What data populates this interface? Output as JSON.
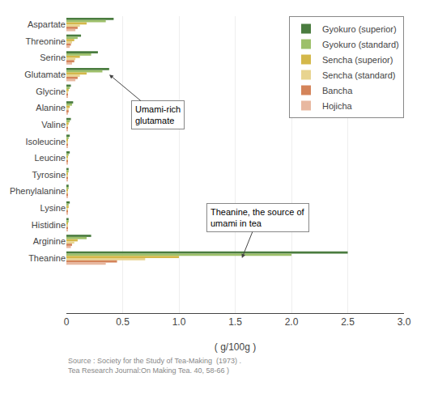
{
  "chart_data": {
    "type": "bar",
    "orientation": "horizontal",
    "categories": [
      "Aspartate",
      "Threonine",
      "Serine",
      "Glutamate",
      "Glycine",
      "Alanine",
      "Valine",
      "Isoleucine",
      "Leucine",
      "Tyrosine",
      "Phenylalanine",
      "Lysine",
      "Histidine",
      "Arginine",
      "Theanine"
    ],
    "series": [
      {
        "name": "Gyokuro (superior)",
        "color": "#4a7c3f",
        "values": [
          0.42,
          0.13,
          0.28,
          0.38,
          0.04,
          0.06,
          0.04,
          0.03,
          0.03,
          0.02,
          0.02,
          0.03,
          0.02,
          0.22,
          2.5
        ]
      },
      {
        "name": "Gyokuro (standard)",
        "color": "#9dc06a",
        "values": [
          0.35,
          0.1,
          0.22,
          0.32,
          0.03,
          0.05,
          0.03,
          0.02,
          0.02,
          0.02,
          0.02,
          0.02,
          0.02,
          0.18,
          2.0
        ]
      },
      {
        "name": "Sencha (superior)",
        "color": "#d4b84a",
        "values": [
          0.18,
          0.07,
          0.12,
          0.18,
          0.02,
          0.03,
          0.02,
          0.01,
          0.01,
          0.01,
          0.01,
          0.02,
          0.01,
          0.1,
          1.0
        ]
      },
      {
        "name": "Sencha (standard)",
        "color": "#e8d490",
        "values": [
          0.12,
          0.05,
          0.08,
          0.12,
          0.01,
          0.02,
          0.01,
          0.01,
          0.01,
          0.01,
          0.01,
          0.01,
          0.01,
          0.07,
          0.7
        ]
      },
      {
        "name": "Bancha",
        "color": "#d4845a",
        "values": [
          0.1,
          0.04,
          0.07,
          0.1,
          0.01,
          0.02,
          0.01,
          0.01,
          0.01,
          0.01,
          0.01,
          0.01,
          0.01,
          0.05,
          0.45
        ]
      },
      {
        "name": "Hojicha",
        "color": "#e8b8a0",
        "values": [
          0.08,
          0.03,
          0.05,
          0.08,
          0.01,
          0.01,
          0.01,
          0.01,
          0.01,
          0.01,
          0.01,
          0.01,
          0.01,
          0.04,
          0.35
        ]
      }
    ],
    "xlabel": "( g/100g )",
    "xlim": [
      0,
      3.0
    ],
    "xticks": [
      0,
      0.5,
      {
        "value": 1.0,
        "label": "1.0"
      },
      1.5,
      {
        "value": 2.0,
        "label": "2.0"
      },
      2.5,
      {
        "value": 3.0,
        "label": "3.0"
      }
    ],
    "grid": true,
    "legend": "upper right",
    "annotations": [
      {
        "text": "Umami-rich\nglutamate",
        "category": "Glutamate"
      },
      {
        "text": "Theanine, the source of\numami in tea",
        "category": "Theanine"
      }
    ],
    "source": "Source : Society for the Study of Tea-Making  (1973) .\nTea Research Journal:On Making Tea. 40, 58-66 )"
  }
}
